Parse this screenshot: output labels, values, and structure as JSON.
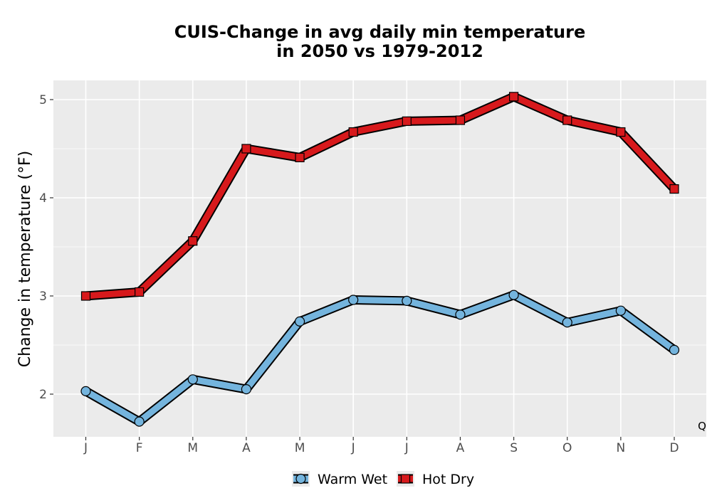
{
  "chart_data": {
    "type": "line",
    "title": "CUIS-Change in avg daily min temperature",
    "subtitle": "in 2050 vs 1979-2012",
    "xlabel": "",
    "ylabel": "Change in temperature (°F)",
    "categories": [
      "J",
      "F",
      "M",
      "A",
      "M",
      "J",
      "J",
      "A",
      "S",
      "O",
      "N",
      "D"
    ],
    "ylim": [
      1.57,
      5.2
    ],
    "yticks": [
      2,
      3,
      4,
      5
    ],
    "grid": true,
    "legend_position": "bottom",
    "corner_text": "Q",
    "series": [
      {
        "name": "Warm Wet",
        "marker": "circle",
        "color": "#74b4dd",
        "values": [
          2.03,
          1.72,
          2.15,
          2.05,
          2.74,
          2.96,
          2.95,
          2.81,
          3.01,
          2.73,
          2.85,
          2.45
        ]
      },
      {
        "name": "Hot Dry",
        "marker": "square",
        "color": "#d7191c",
        "values": [
          3.0,
          3.04,
          3.56,
          4.5,
          4.41,
          4.67,
          4.78,
          4.79,
          5.03,
          4.79,
          4.67,
          4.09
        ]
      }
    ]
  }
}
